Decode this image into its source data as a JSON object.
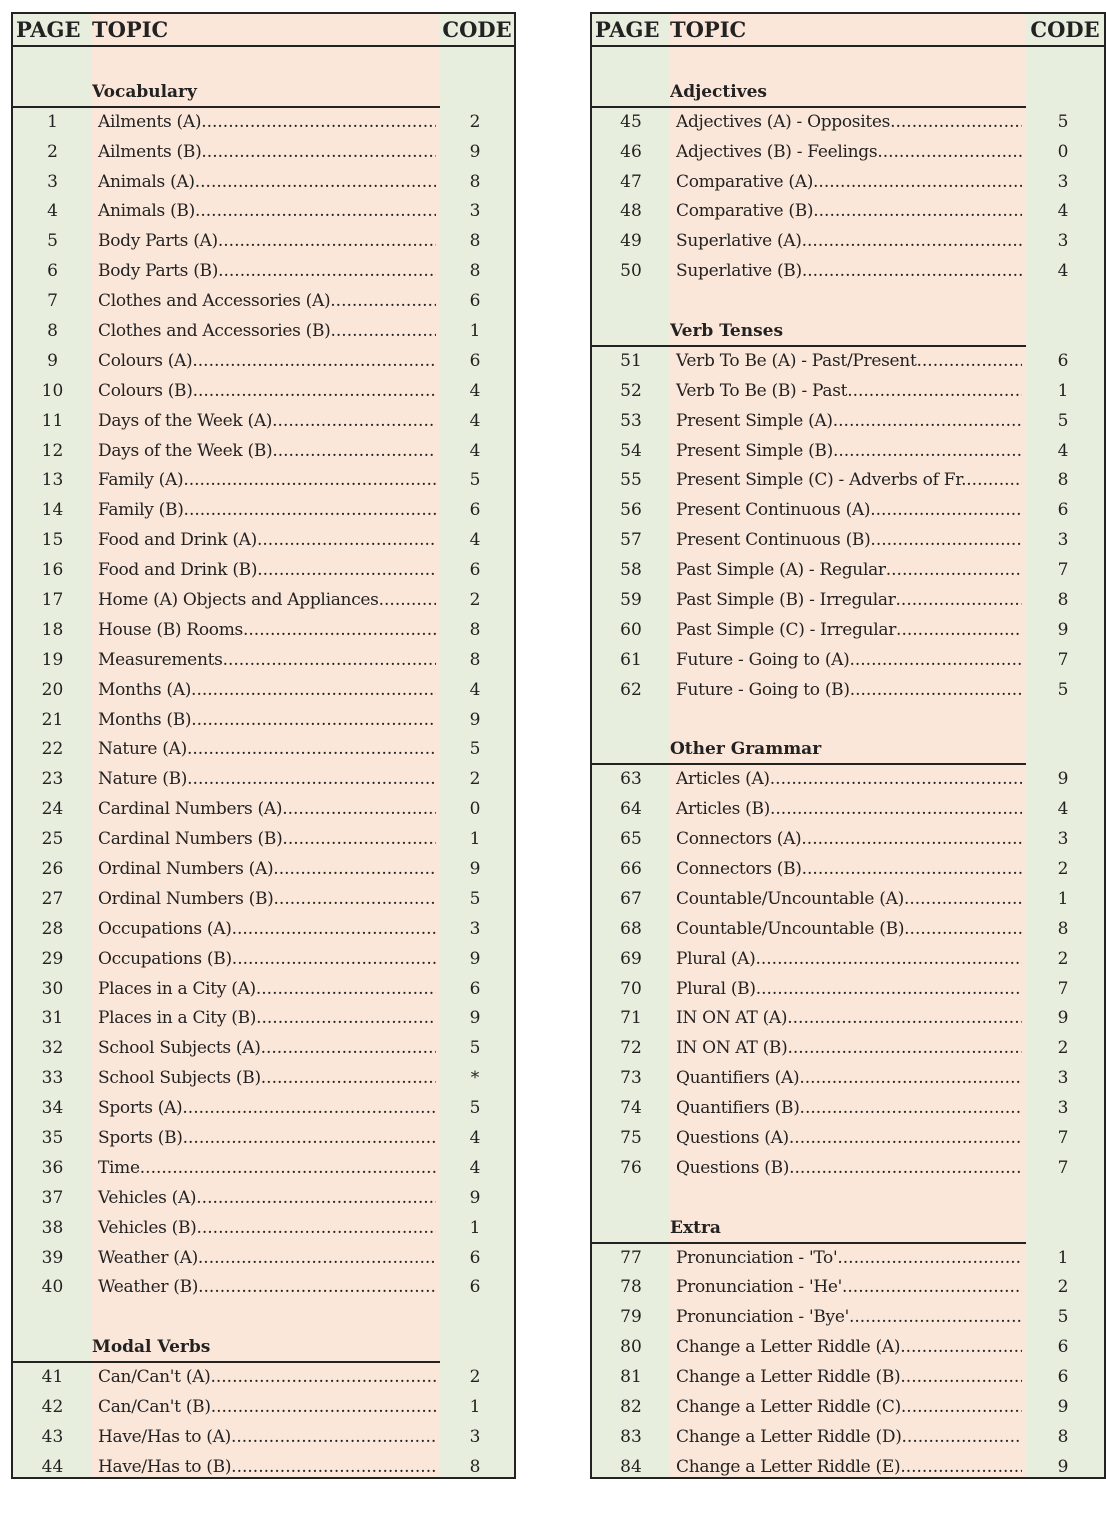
{
  "header": {
    "page": "PAGE",
    "topic": "TOPIC",
    "code": "CODE"
  },
  "colors": {
    "page_col": "#e8eedd",
    "topic_col": "#fbe7da",
    "border": "#222222"
  },
  "left": {
    "sections": [
      {
        "heading": "Vocabulary",
        "rows": [
          {
            "page": "1",
            "topic": "Ailments (A)",
            "code": "2"
          },
          {
            "page": "2",
            "topic": "Ailments (B)",
            "code": "9"
          },
          {
            "page": "3",
            "topic": "Animals (A)",
            "code": "8"
          },
          {
            "page": "4",
            "topic": "Animals (B)",
            "code": "3"
          },
          {
            "page": "5",
            "topic": "Body Parts (A)",
            "code": "8"
          },
          {
            "page": "6",
            "topic": "Body Parts (B)",
            "code": "8"
          },
          {
            "page": "7",
            "topic": "Clothes and Accessories (A)",
            "code": "6"
          },
          {
            "page": "8",
            "topic": "Clothes and Accessories (B)",
            "code": "1"
          },
          {
            "page": "9",
            "topic": "Colours (A)",
            "code": "6"
          },
          {
            "page": "10",
            "topic": "Colours (B)",
            "code": "4"
          },
          {
            "page": "11",
            "topic": "Days of the Week (A)",
            "code": "4"
          },
          {
            "page": "12",
            "topic": "Days of the Week (B)",
            "code": "4"
          },
          {
            "page": "13",
            "topic": "Family (A)",
            "code": "5"
          },
          {
            "page": "14",
            "topic": "Family (B)",
            "code": "6"
          },
          {
            "page": "15",
            "topic": "Food and Drink (A)",
            "code": "4"
          },
          {
            "page": "16",
            "topic": "Food and Drink (B)",
            "code": "6"
          },
          {
            "page": "17",
            "topic": "Home (A) Objects and Appliances",
            "code": "2"
          },
          {
            "page": "18",
            "topic": "House (B) Rooms",
            "code": "8"
          },
          {
            "page": "19",
            "topic": "Measurements",
            "code": "8"
          },
          {
            "page": "20",
            "topic": "Months (A)",
            "code": "4"
          },
          {
            "page": "21",
            "topic": "Months (B)",
            "code": "9"
          },
          {
            "page": "22",
            "topic": "Nature (A)",
            "code": "5"
          },
          {
            "page": "23",
            "topic": "Nature (B)",
            "code": "2"
          },
          {
            "page": "24",
            "topic": "Cardinal Numbers (A)",
            "code": "0"
          },
          {
            "page": "25",
            "topic": "Cardinal Numbers (B)",
            "code": "1"
          },
          {
            "page": "26",
            "topic": "Ordinal Numbers (A)",
            "code": "9"
          },
          {
            "page": "27",
            "topic": "Ordinal Numbers (B)",
            "code": "5"
          },
          {
            "page": "28",
            "topic": "Occupations (A)",
            "code": "3"
          },
          {
            "page": "29",
            "topic": "Occupations (B)",
            "code": "9"
          },
          {
            "page": "30",
            "topic": "Places in a City (A)",
            "code": "6"
          },
          {
            "page": "31",
            "topic": "Places in a City (B)",
            "code": "9"
          },
          {
            "page": "32",
            "topic": "School Subjects (A)",
            "code": "5"
          },
          {
            "page": "33",
            "topic": "School Subjects (B)",
            "code": "*"
          },
          {
            "page": "34",
            "topic": "Sports (A)",
            "code": "5"
          },
          {
            "page": "35",
            "topic": "Sports (B)",
            "code": "4"
          },
          {
            "page": "36",
            "topic": "Time",
            "code": "4"
          },
          {
            "page": "37",
            "topic": "Vehicles (A)",
            "code": "9"
          },
          {
            "page": "38",
            "topic": "Vehicles (B)",
            "code": "1"
          },
          {
            "page": "39",
            "topic": "Weather (A)",
            "code": "6"
          },
          {
            "page": "40",
            "topic": "Weather (B)",
            "code": "6"
          }
        ]
      },
      {
        "heading": "Modal Verbs",
        "rows": [
          {
            "page": "41",
            "topic": "Can/Can't (A)",
            "code": "2"
          },
          {
            "page": "42",
            "topic": "Can/Can't (B)",
            "code": "1"
          },
          {
            "page": "43",
            "topic": "Have/Has to (A)",
            "code": "3"
          },
          {
            "page": "44",
            "topic": "Have/Has to (B)",
            "code": "8"
          }
        ]
      }
    ]
  },
  "right": {
    "sections": [
      {
        "heading": "Adjectives",
        "rows": [
          {
            "page": "45",
            "topic": "Adjectives (A) - Opposites",
            "code": "5"
          },
          {
            "page": "46",
            "topic": "Adjectives (B) - Feelings",
            "code": "0"
          },
          {
            "page": "47",
            "topic": "Comparative (A)",
            "code": "3"
          },
          {
            "page": "48",
            "topic": "Comparative (B)",
            "code": "4"
          },
          {
            "page": "49",
            "topic": "Superlative (A)",
            "code": "3"
          },
          {
            "page": "50",
            "topic": "Superlative (B)",
            "code": "4"
          }
        ]
      },
      {
        "heading": "Verb Tenses",
        "rows": [
          {
            "page": "51",
            "topic": "Verb  To Be (A) - Past/Present",
            "code": "6"
          },
          {
            "page": "52",
            "topic": "Verb  To Be (B) - Past",
            "code": "1"
          },
          {
            "page": "53",
            "topic": "Present Simple (A)",
            "code": "5"
          },
          {
            "page": "54",
            "topic": "Present Simple (B)",
            "code": "4"
          },
          {
            "page": "55",
            "topic": "Present Simple (C) - Adverbs of Fr.",
            "code": "8"
          },
          {
            "page": "56",
            "topic": "Present Continuous (A)",
            "code": "6"
          },
          {
            "page": "57",
            "topic": "Present Continuous (B)",
            "code": "3"
          },
          {
            "page": "58",
            "topic": "Past Simple (A) - Regular",
            "code": "7"
          },
          {
            "page": "59",
            "topic": "Past Simple (B) - Irregular",
            "code": "8"
          },
          {
            "page": "60",
            "topic": "Past Simple (C) - Irregular",
            "code": "9"
          },
          {
            "page": "61",
            "topic": "Future - Going to (A)",
            "code": "7"
          },
          {
            "page": "62",
            "topic": "Future - Going to (B)",
            "code": "5"
          }
        ]
      },
      {
        "heading": "Other Grammar",
        "rows": [
          {
            "page": "63",
            "topic": "Articles (A)",
            "code": "9"
          },
          {
            "page": "64",
            "topic": "Articles (B)",
            "code": "4"
          },
          {
            "page": "65",
            "topic": "Connectors (A)",
            "code": "3"
          },
          {
            "page": "66",
            "topic": "Connectors (B)",
            "code": "2"
          },
          {
            "page": "67",
            "topic": "Countable/Uncountable (A)",
            "code": "1"
          },
          {
            "page": "68",
            "topic": "Countable/Uncountable (B)",
            "code": "8"
          },
          {
            "page": "69",
            "topic": "Plural (A)",
            "code": "2"
          },
          {
            "page": "70",
            "topic": "Plural (B)",
            "code": "7"
          },
          {
            "page": "71",
            "topic": "IN ON AT (A)",
            "code": "9"
          },
          {
            "page": "72",
            "topic": "IN ON AT (B)",
            "code": "2"
          },
          {
            "page": "73",
            "topic": "Quantifiers (A)",
            "code": "3"
          },
          {
            "page": "74",
            "topic": "Quantifiers (B)",
            "code": "3"
          },
          {
            "page": "75",
            "topic": "Questions (A)",
            "code": "7"
          },
          {
            "page": "76",
            "topic": "Questions (B)",
            "code": "7"
          }
        ]
      },
      {
        "heading": "Extra",
        "rows": [
          {
            "page": "77",
            "topic": "Pronunciation - 'To'",
            "code": "1"
          },
          {
            "page": "78",
            "topic": "Pronunciation - 'He'",
            "code": "2"
          },
          {
            "page": "79",
            "topic": "Pronunciation - 'Bye'",
            "code": "5"
          },
          {
            "page": "80",
            "topic": "Change a Letter Riddle (A)",
            "code": "6"
          },
          {
            "page": "81",
            "topic": "Change a Letter Riddle (B)",
            "code": "6"
          },
          {
            "page": "82",
            "topic": "Change a Letter Riddle (C)",
            "code": "9"
          },
          {
            "page": "83",
            "topic": "Change a Letter Riddle (D)",
            "code": "8"
          },
          {
            "page": "84",
            "topic": "Change a Letter Riddle (E)",
            "code": "9"
          }
        ]
      }
    ]
  }
}
